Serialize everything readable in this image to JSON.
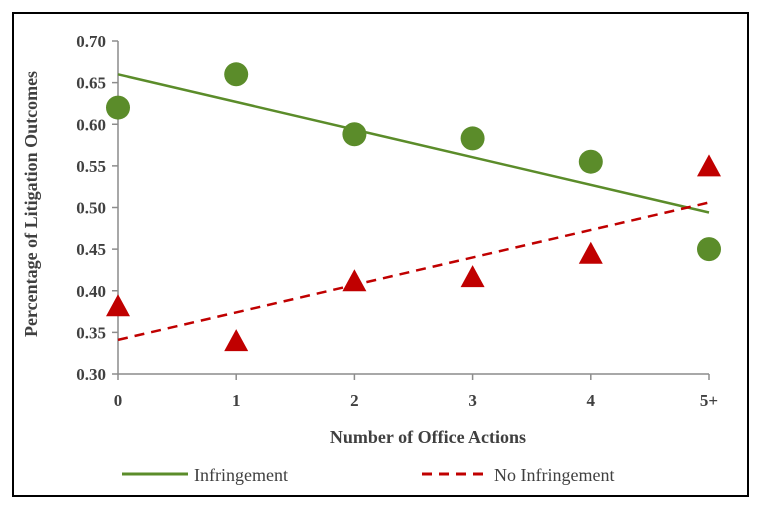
{
  "chart_data": {
    "type": "scatter",
    "title": "",
    "xlabel": "Number of Office Actions",
    "ylabel": "Percentage of Litigation Outcomes",
    "categories": [
      "0",
      "1",
      "2",
      "3",
      "4",
      "5+"
    ],
    "ylim": [
      0.3,
      0.7
    ],
    "yticks": [
      "0.30",
      "0.35",
      "0.40",
      "0.45",
      "0.50",
      "0.55",
      "0.60",
      "0.65",
      "0.70"
    ],
    "grid": false,
    "legend_position": "bottom",
    "series": [
      {
        "name": "Infringement",
        "marker": "circle",
        "color": "#5B8C2A",
        "values": [
          0.62,
          0.66,
          0.588,
          0.583,
          0.555,
          0.45
        ],
        "trendline": {
          "style": "solid",
          "start": 0.66,
          "end": 0.494
        }
      },
      {
        "name": "No Infringement",
        "marker": "triangle",
        "color": "#C00000",
        "values": [
          0.38,
          0.338,
          0.41,
          0.415,
          0.443,
          0.548
        ],
        "trendline": {
          "style": "dashed",
          "start": 0.341,
          "end": 0.506
        }
      }
    ]
  }
}
